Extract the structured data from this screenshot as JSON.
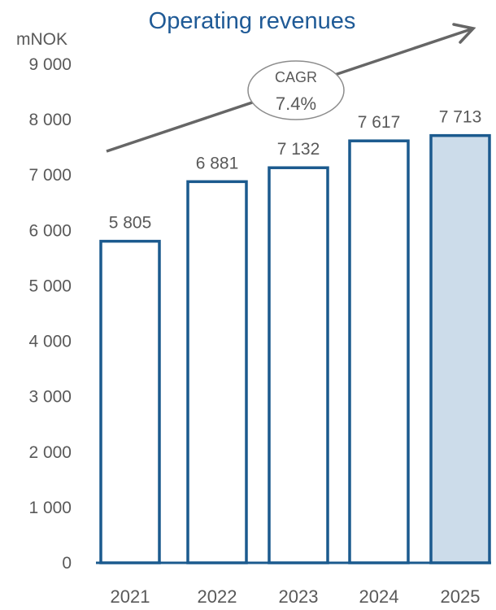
{
  "colors": {
    "title": "#1F5A96",
    "bar_stroke": "#1B5A8E",
    "bar_fill": "#FFFFFF",
    "bar_fill_highlight": "#CCDCEA",
    "axis": "#1B5A8E",
    "arrow": "#666666",
    "text": "#595959",
    "ellipse_stroke": "#8C8C8C"
  },
  "chart_data": {
    "type": "bar",
    "title": "Operating revenues",
    "ylabel": "mNOK",
    "xlabel": "",
    "categories": [
      "2021",
      "2022",
      "2023",
      "2024",
      "2025"
    ],
    "values": [
      5805,
      6881,
      7132,
      7617,
      7713
    ],
    "value_labels": [
      "5 805",
      "6 881",
      "7 132",
      "7 617",
      "7 713"
    ],
    "highlight_index": 4,
    "ylim": [
      0,
      9000
    ],
    "yticks": [
      0,
      1000,
      2000,
      3000,
      4000,
      5000,
      6000,
      7000,
      8000,
      9000
    ],
    "ytick_labels": [
      "0",
      "1 000",
      "2 000",
      "3 000",
      "4 000",
      "5 000",
      "6 000",
      "7 000",
      "8 000",
      "9 000"
    ],
    "grid": false,
    "legend": "none",
    "annotation": {
      "label": "CAGR",
      "value": "7.4%"
    }
  }
}
